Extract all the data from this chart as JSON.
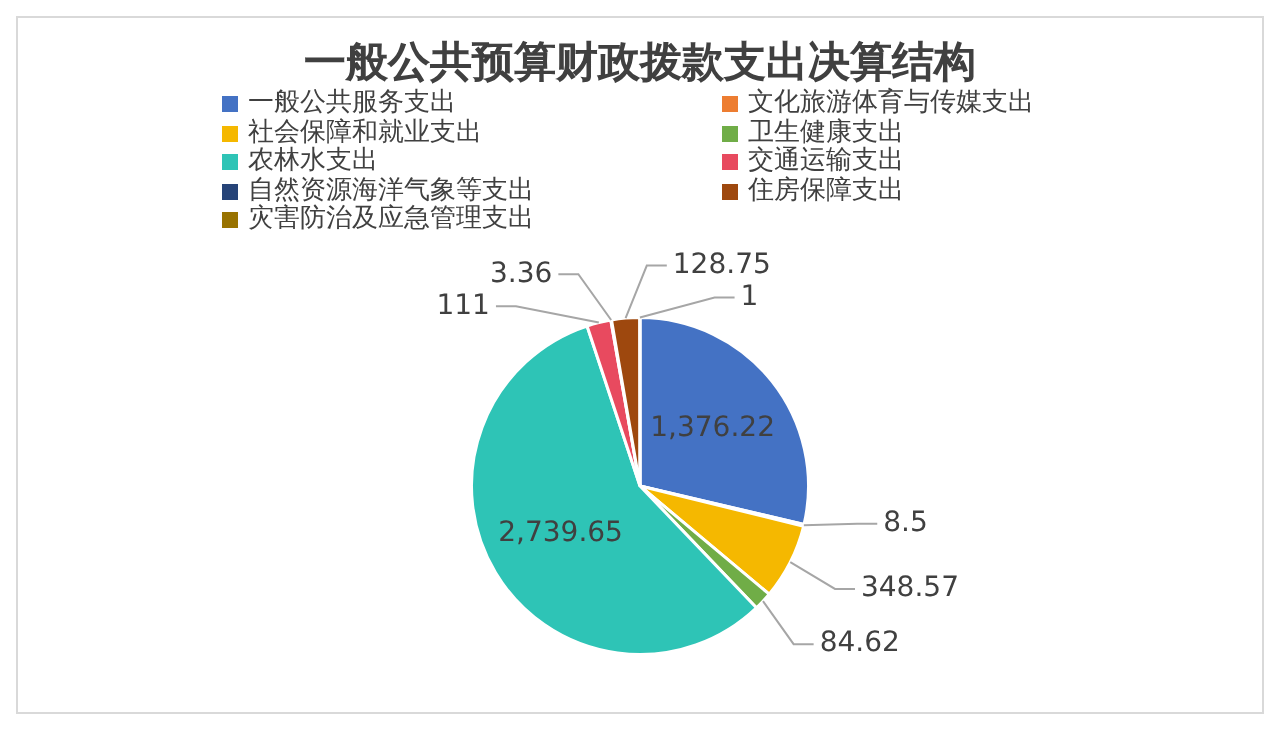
{
  "chart_data": {
    "type": "pie",
    "title": "一般公共预算财政拨款支出决算结构",
    "categories": [
      "一般公共服务支出",
      "文化旅游体育与传媒支出",
      "社会保障和就业支出",
      "卫生健康支出",
      "农林水支出",
      "交通运输支出",
      "自然资源海洋气象等支出",
      "住房保障支出",
      "灾害防治及应急管理支出"
    ],
    "values": [
      1376.22,
      8.5,
      348.57,
      84.62,
      2739.65,
      111,
      3.36,
      128.75,
      1
    ],
    "value_labels": [
      "1,376.22",
      "8.5",
      "348.57",
      "84.62",
      "2,739.65",
      "111",
      "3.36",
      "128.75",
      "1"
    ],
    "colors": [
      "#4472c4",
      "#ed7d31",
      "#f5b800",
      "#70ad47",
      "#2ec4b6",
      "#e84a5f",
      "#264478",
      "#9e480e",
      "#997300"
    ],
    "legend": "top"
  }
}
